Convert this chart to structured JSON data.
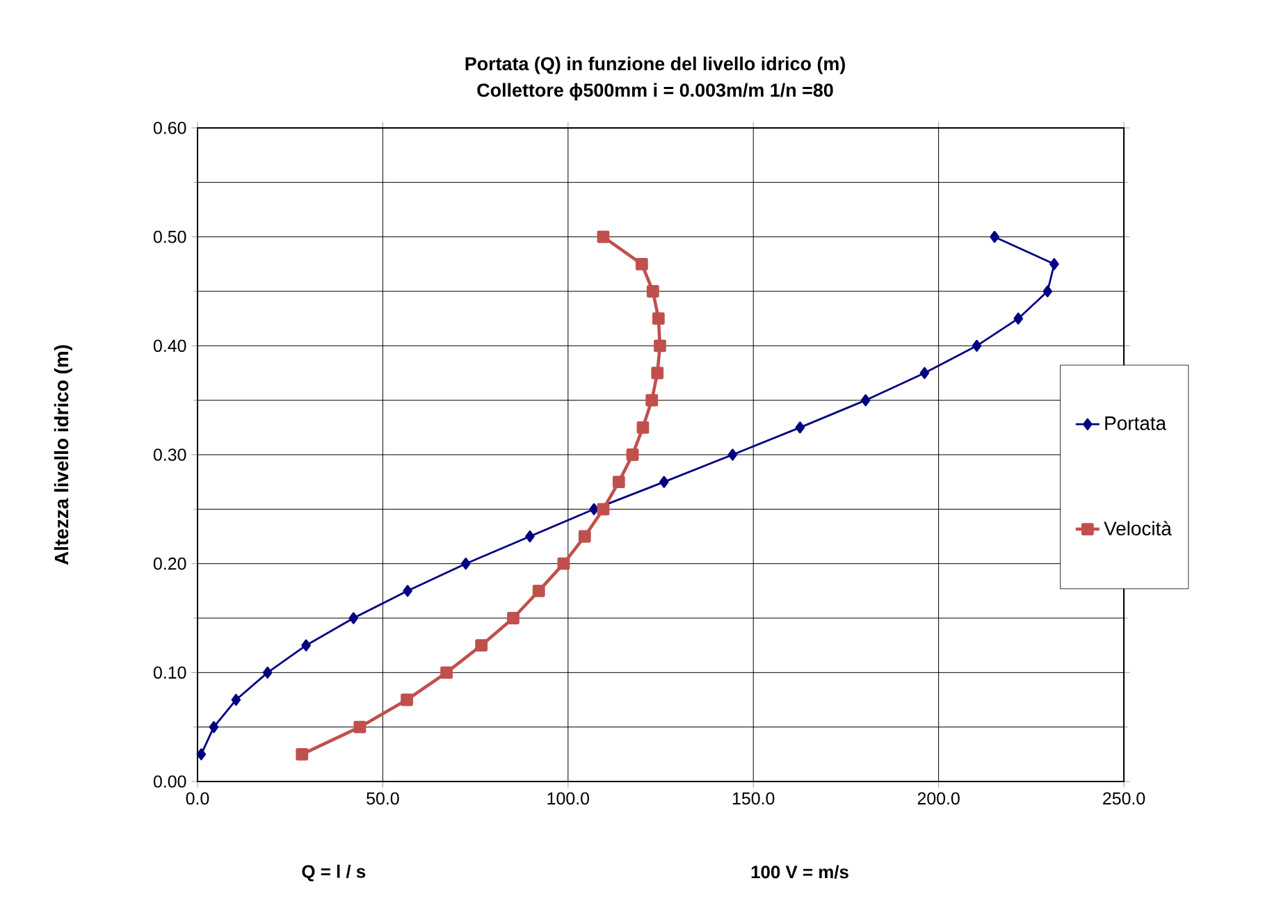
{
  "chart_data": {
    "type": "line",
    "title": "Portata (Q) in funzione del livello idrico (m)",
    "subtitle": "Collettore ϕ500mm  i = 0.003m/m  1/n =80",
    "xlabel": "Q  = l / s",
    "ylabel": "Altezza livello idrico (m)",
    "annotations": [
      "100 V = m/s"
    ],
    "xlim": [
      0,
      250
    ],
    "xticks": [
      {
        "value": 0,
        "label": "0.0"
      },
      {
        "value": 50,
        "label": "50.0"
      },
      {
        "value": 100,
        "label": "100.0"
      },
      {
        "value": 150,
        "label": "150.0"
      },
      {
        "value": 200,
        "label": "200.0"
      },
      {
        "value": 250,
        "label": "250.0"
      }
    ],
    "ylim": [
      0,
      0.6
    ],
    "yticks": [
      {
        "value": 0,
        "label": "0.00"
      },
      {
        "value": 0.1,
        "label": "0.10"
      },
      {
        "value": 0.2,
        "label": "0.20"
      },
      {
        "value": 0.3,
        "label": "0.30"
      },
      {
        "value": 0.4,
        "label": "0.40"
      },
      {
        "value": 0.5,
        "label": "0.50"
      },
      {
        "value": 0.6,
        "label": "0.60"
      }
    ],
    "grid": true,
    "legend": "right",
    "line_style": "solid",
    "series": [
      {
        "name": "Portata",
        "color": "#000080",
        "marker": "diamond",
        "x": [
          1.0,
          4.4,
          10.4,
          18.9,
          29.3,
          42.1,
          56.7,
          72.4,
          89.7,
          107,
          125.9,
          144.4,
          162.6,
          180.3,
          196.2,
          210.3,
          221.5,
          229.4,
          231.2,
          215.1
        ],
        "values": [
          0.025,
          0.05,
          0.075,
          0.1,
          0.125,
          0.15,
          0.175,
          0.2,
          0.225,
          0.25,
          0.275,
          0.3,
          0.325,
          0.35,
          0.375,
          0.4,
          0.425,
          0.45,
          0.475,
          0.5
        ]
      },
      {
        "name": "Velocità",
        "color": "#c0504d",
        "marker": "square",
        "x": [
          28.2,
          43.8,
          56.5,
          67.2,
          76.6,
          85.2,
          92.1,
          98.8,
          104.5,
          109.5,
          113.7,
          117.4,
          120.2,
          122.6,
          124.1,
          124.8,
          124.4,
          122.9,
          119.9,
          109.5
        ],
        "values": [
          0.025,
          0.05,
          0.075,
          0.1,
          0.125,
          0.15,
          0.175,
          0.2,
          0.225,
          0.25,
          0.275,
          0.3,
          0.325,
          0.35,
          0.375,
          0.4,
          0.425,
          0.45,
          0.475,
          0.5
        ]
      }
    ]
  }
}
